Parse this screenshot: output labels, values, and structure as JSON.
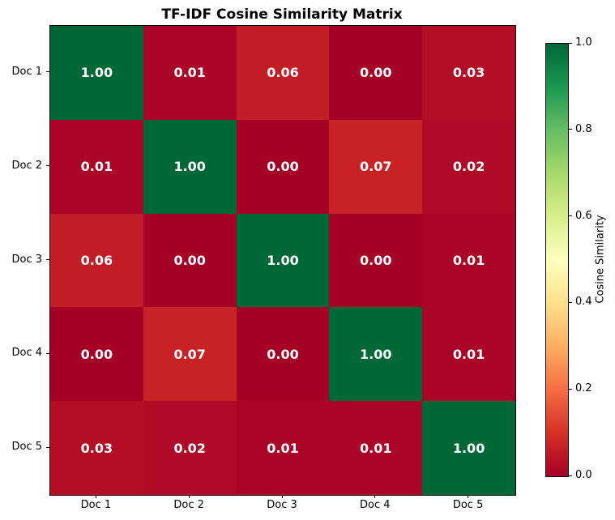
{
  "chart_data": {
    "type": "heatmap",
    "title": "TF-IDF Cosine Similarity Matrix",
    "row_labels": [
      "Doc 1",
      "Doc 2",
      "Doc 3",
      "Doc 4",
      "Doc 5"
    ],
    "col_labels": [
      "Doc 1",
      "Doc 2",
      "Doc 3",
      "Doc 4",
      "Doc 5"
    ],
    "matrix": [
      [
        1.0,
        0.01,
        0.06,
        0.0,
        0.03
      ],
      [
        0.01,
        1.0,
        0.0,
        0.07,
        0.02
      ],
      [
        0.06,
        0.0,
        1.0,
        0.0,
        0.01
      ],
      [
        0.0,
        0.07,
        0.0,
        1.0,
        0.01
      ],
      [
        0.03,
        0.02,
        0.01,
        0.01,
        1.0
      ]
    ],
    "value_decimals": 2,
    "annotation_color": "#ffffff",
    "value_range": [
      0.0,
      1.0
    ],
    "colorbar": {
      "label": "Cosine Similarity",
      "tick_labels": [
        "0.0",
        "0.2",
        "0.4",
        "0.6",
        "0.8",
        "1.0"
      ],
      "tick_values": [
        0.0,
        0.2,
        0.4,
        0.6,
        0.8,
        1.0
      ],
      "position": "right"
    },
    "colormap": {
      "name": "RdYlGn",
      "stops": [
        {
          "t": 0.0,
          "color": "#a50026"
        },
        {
          "t": 0.1,
          "color": "#d73027"
        },
        {
          "t": 0.2,
          "color": "#f46d43"
        },
        {
          "t": 0.3,
          "color": "#fdae61"
        },
        {
          "t": 0.4,
          "color": "#fee08b"
        },
        {
          "t": 0.5,
          "color": "#ffffbf"
        },
        {
          "t": 0.6,
          "color": "#d9ef8b"
        },
        {
          "t": 0.7,
          "color": "#a6d96a"
        },
        {
          "t": 0.8,
          "color": "#66bd63"
        },
        {
          "t": 0.9,
          "color": "#1a9850"
        },
        {
          "t": 1.0,
          "color": "#006837"
        }
      ]
    },
    "background": "#ffffff",
    "grid": false,
    "legend": false
  }
}
